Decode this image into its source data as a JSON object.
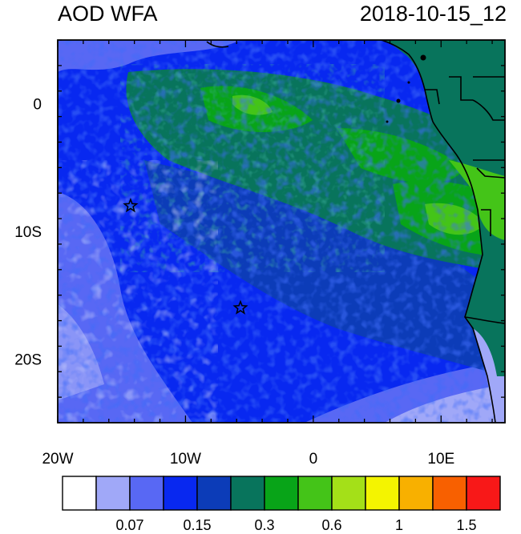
{
  "map": {
    "title_left": "AOD WFA",
    "title_right": "2018-10-15_12",
    "lat_ticks": [
      {
        "label": "0",
        "lat": 0
      },
      {
        "label": "10S",
        "lat": -10
      },
      {
        "label": "20S",
        "lat": -20
      }
    ],
    "lon_ticks": [
      {
        "label": "20W",
        "lon": -20
      },
      {
        "label": "10W",
        "lon": -10
      },
      {
        "label": "0",
        "lon": 0
      },
      {
        "label": "10E",
        "lon": 10
      }
    ],
    "extent": {
      "lon_min": -20,
      "lon_max": 15,
      "lat_min": -25,
      "lat_max": 5
    },
    "markers": [
      {
        "name": "star-marker-north",
        "lon": -14.3,
        "lat": -8.0
      },
      {
        "name": "star-marker-south",
        "lon": -5.7,
        "lat": -16.0
      }
    ]
  },
  "colorbar": {
    "colors": [
      "#ffffff",
      "#a0a8f8",
      "#5868f4",
      "#0828f0",
      "#0c3cb8",
      "#08745c",
      "#08a418",
      "#44c418",
      "#a4e018",
      "#f4f400",
      "#f8b000",
      "#f86000",
      "#f81818"
    ],
    "labels": [
      {
        "text": "0.07",
        "index": 2
      },
      {
        "text": "0.15",
        "index": 4
      },
      {
        "text": "0.3",
        "index": 6
      },
      {
        "text": "0.6",
        "index": 8
      },
      {
        "text": "1",
        "index": 10
      },
      {
        "text": "1.5",
        "index": 12
      }
    ]
  }
}
